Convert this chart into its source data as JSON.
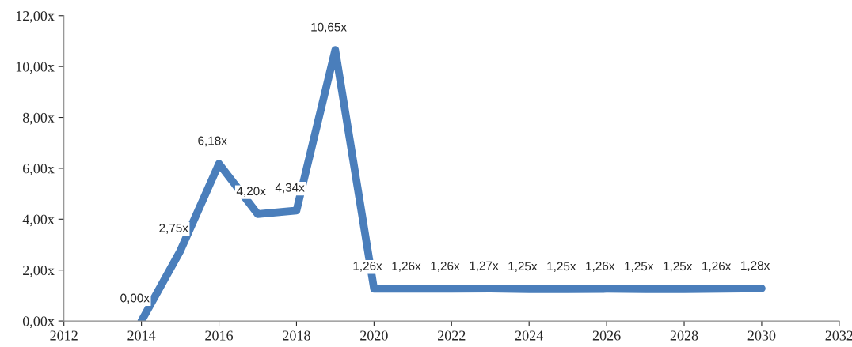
{
  "chart_data": {
    "type": "line",
    "x": [
      2014,
      2015,
      2016,
      2017,
      2018,
      2019,
      2020,
      2021,
      2022,
      2023,
      2024,
      2025,
      2026,
      2027,
      2028,
      2029,
      2030
    ],
    "series": [
      {
        "color": "#4a7ebb",
        "values": [
          0.0,
          2.75,
          6.18,
          4.2,
          4.34,
          10.65,
          1.26,
          1.26,
          1.26,
          1.27,
          1.25,
          1.25,
          1.26,
          1.25,
          1.25,
          1.26,
          1.28
        ],
        "value_labels": [
          "0,00x",
          "2,75x",
          "6,18x",
          "4,20x",
          "4,34x",
          "10,65x",
          "1,26x",
          "1,26x",
          "1,26x",
          "1,27x",
          "1,25x",
          "1,25x",
          "1,26x",
          "1,25x",
          "1,25x",
          "1,26x",
          "1,28x"
        ]
      }
    ],
    "xlim": [
      2012,
      2032
    ],
    "xticks": [
      2012,
      2014,
      2016,
      2018,
      2020,
      2022,
      2024,
      2026,
      2028,
      2030,
      2032
    ],
    "ylim": [
      0,
      12
    ],
    "yticks": [
      {
        "value": 0,
        "label": "0,00x"
      },
      {
        "value": 2,
        "label": "2,00x"
      },
      {
        "value": 4,
        "label": "4,00x"
      },
      {
        "value": 6,
        "label": "6,00x"
      },
      {
        "value": 8,
        "label": "8,00x"
      },
      {
        "value": 10,
        "label": "10,00x"
      },
      {
        "value": 12,
        "label": "12,00x"
      }
    ],
    "grid": false,
    "marker": "none",
    "line_style": "solid"
  }
}
